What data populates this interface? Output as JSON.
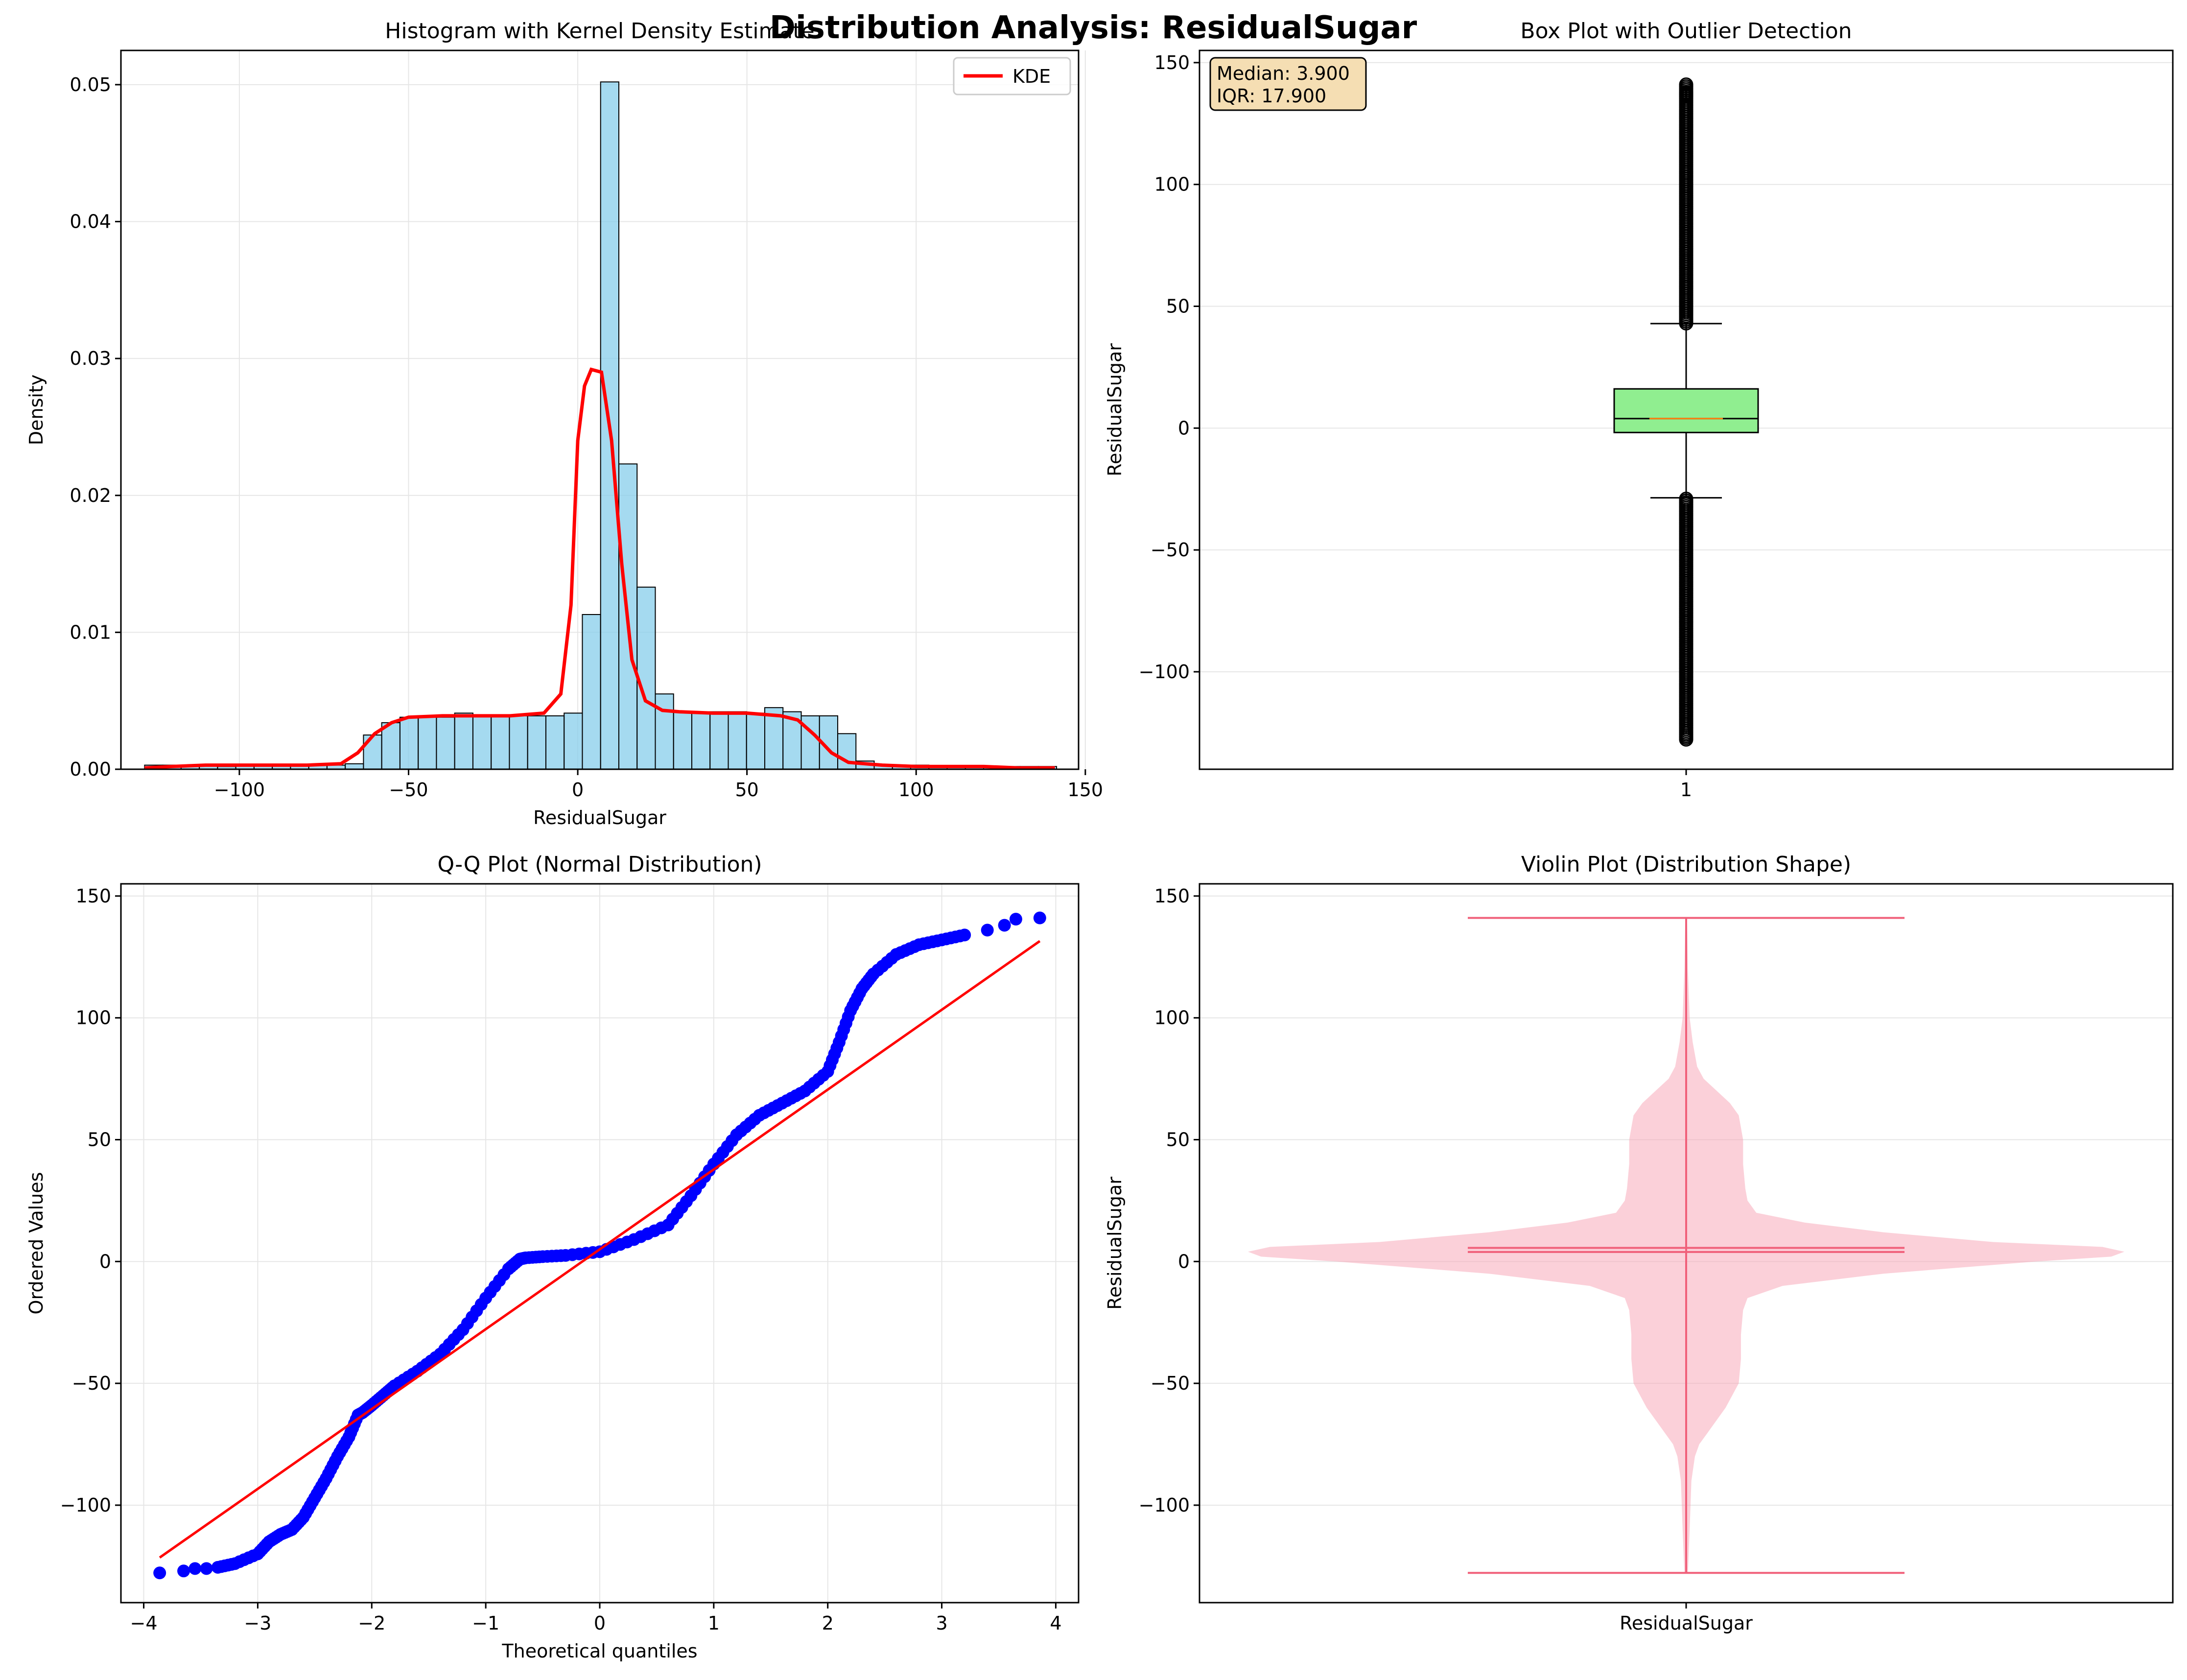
{
  "figure": {
    "title": "Distribution Analysis: ResidualSugar"
  },
  "colors": {
    "hist_fill": "#87ceeb",
    "kde": "#ff0000",
    "box_fill": "#90ee90",
    "median": "#ff7f0e",
    "qq_points": "#0000ff",
    "qq_line": "#ff0000",
    "violin": "#f7a1b3",
    "violin_lines": "#f0607a",
    "annotation_fill": "#f5deb3",
    "grid": "#e6e6e6"
  },
  "chart_data": [
    {
      "panel": "histogram",
      "type": "bar",
      "title": "Histogram with Kernel Density Estimate",
      "xlabel": "ResidualSugar",
      "ylabel": "Density",
      "xlim": [
        -135,
        148
      ],
      "ylim": [
        0,
        0.0525
      ],
      "xticks": [
        -100,
        -50,
        0,
        50,
        100,
        150
      ],
      "xtick_labels": [
        "−100",
        "−50",
        "0",
        "50",
        "100",
        "150"
      ],
      "yticks": [
        0.0,
        0.01,
        0.02,
        0.03,
        0.04,
        0.05
      ],
      "ytick_labels": [
        "0.00",
        "0.01",
        "0.02",
        "0.03",
        "0.04",
        "0.05"
      ],
      "grid": true,
      "legend": {
        "entries": [
          "KDE"
        ],
        "placement": "upper-right"
      },
      "bins": {
        "start": -128.0,
        "width": 5.39,
        "values": [
          0.0003,
          0.0003,
          0.0003,
          0.0003,
          0.0002,
          0.0003,
          0.0003,
          0.0003,
          0.0003,
          0.0003,
          0.0003,
          0.0004,
          0.0025,
          0.0034,
          0.0038,
          0.0038,
          0.0038,
          0.0041,
          0.0039,
          0.0039,
          0.0039,
          0.0039,
          0.0039,
          0.0041,
          0.0113,
          0.0502,
          0.0223,
          0.0133,
          0.0055,
          0.0042,
          0.0042,
          0.0042,
          0.0042,
          0.0041,
          0.0045,
          0.0042,
          0.0039,
          0.0039,
          0.0026,
          0.0006,
          0.0003,
          0.0003,
          0.0003,
          0.0002,
          0.0002,
          0.0002,
          0.0002,
          0.0002,
          0.0002,
          0.0002
        ]
      },
      "kde": {
        "name": "KDE",
        "x": [
          -128,
          -120,
          -110,
          -100,
          -90,
          -80,
          -70,
          -65,
          -60,
          -55,
          -50,
          -40,
          -30,
          -20,
          -10,
          -5,
          -2,
          0,
          2,
          4,
          7,
          10,
          13,
          16,
          20,
          25,
          30,
          40,
          50,
          60,
          65,
          70,
          75,
          80,
          90,
          100,
          110,
          120,
          130,
          141
        ],
        "y": [
          0.0001,
          0.0002,
          0.0003,
          0.0003,
          0.0003,
          0.0003,
          0.0004,
          0.0012,
          0.0026,
          0.0034,
          0.0038,
          0.0039,
          0.0039,
          0.0039,
          0.0041,
          0.0055,
          0.012,
          0.024,
          0.028,
          0.0292,
          0.029,
          0.024,
          0.015,
          0.008,
          0.005,
          0.0043,
          0.0042,
          0.0041,
          0.0041,
          0.0039,
          0.0036,
          0.0025,
          0.0012,
          0.0005,
          0.0003,
          0.0002,
          0.0002,
          0.0002,
          0.0001,
          0.0001
        ]
      }
    },
    {
      "panel": "boxplot",
      "type": "box",
      "title": "Box Plot with Outlier Detection",
      "ylabel": "ResidualSugar",
      "xticks": [
        1
      ],
      "xtick_labels": [
        "1"
      ],
      "ylim": [
        -140,
        155
      ],
      "yticks": [
        -100,
        -50,
        0,
        50,
        100,
        150
      ],
      "ytick_labels": [
        "−100",
        "−50",
        "0",
        "50",
        "100",
        "150"
      ],
      "grid": true,
      "annotation": {
        "line1": "Median: 3.900",
        "line2": "IQR: 17.900"
      },
      "stats": {
        "q1": -1.8,
        "median": 3.9,
        "q3": 16.1,
        "whisker_low": -28.6,
        "whisker_high": 42.9,
        "min": -127.8,
        "max": 141.0
      },
      "outliers_upper": [
        43,
        46,
        49,
        52,
        55,
        58,
        61,
        64,
        67,
        70,
        73,
        76,
        79,
        82,
        85,
        88,
        91,
        94,
        97,
        100,
        103,
        106,
        109,
        112,
        115,
        118,
        121,
        124,
        127,
        130,
        133,
        136,
        138,
        141
      ],
      "outliers_lower": [
        -29,
        -32,
        -35,
        -38,
        -41,
        -44,
        -47,
        -50,
        -53,
        -56,
        -59,
        -62,
        -65,
        -68,
        -71,
        -74,
        -77,
        -80,
        -83,
        -86,
        -89,
        -92,
        -95,
        -98,
        -101,
        -104,
        -107,
        -110,
        -113,
        -116,
        -119,
        -122,
        -125,
        -127.8
      ]
    },
    {
      "panel": "qq",
      "type": "scatter",
      "title": "Q-Q Plot (Normal Distribution)",
      "xlabel": "Theoretical quantiles",
      "ylabel": "Ordered Values",
      "xlim": [
        -4.2,
        4.2
      ],
      "ylim": [
        -140,
        155
      ],
      "xticks": [
        -4,
        -3,
        -2,
        -1,
        0,
        1,
        2,
        3,
        4
      ],
      "xtick_labels": [
        "−4",
        "−3",
        "−2",
        "−1",
        "0",
        "1",
        "2",
        "3",
        "4"
      ],
      "yticks": [
        -100,
        -50,
        0,
        50,
        100,
        150
      ],
      "ytick_labels": [
        "−100",
        "−50",
        "0",
        "50",
        "100",
        "150"
      ],
      "grid": true,
      "points": {
        "x": [
          -3.86,
          -3.65,
          -3.55,
          -3.45,
          -3.35,
          -3.2,
          -3.0,
          -2.9,
          -2.8,
          -2.7,
          -2.6,
          -2.5,
          -2.4,
          -2.3,
          -2.2,
          -2.12,
          -2.08,
          -2.0,
          -1.9,
          -1.8,
          -1.6,
          -1.4,
          -1.2,
          -1.0,
          -0.8,
          -0.7,
          -0.65,
          -0.5,
          -0.3,
          0.0,
          0.3,
          0.6,
          0.8,
          1.0,
          1.2,
          1.4,
          1.6,
          1.8,
          2.0,
          2.1,
          2.2,
          2.3,
          2.4,
          2.6,
          2.8,
          3.0,
          3.2,
          3.4,
          3.55,
          3.65,
          3.86
        ],
        "y": [
          -127.8,
          -127.0,
          -126.0,
          -126.0,
          -125.5,
          -124.0,
          -120.0,
          -115.0,
          -112.0,
          -110.0,
          -105.0,
          -97.0,
          -89.0,
          -80.0,
          -72.0,
          -63.0,
          -62.0,
          -59.0,
          -55.0,
          -51.0,
          -45.0,
          -38.0,
          -28.0,
          -15.0,
          -3.0,
          1.0,
          1.5,
          2.0,
          2.5,
          4.0,
          9.0,
          15.0,
          27.0,
          40.0,
          52.0,
          60.0,
          65.0,
          70.0,
          78.0,
          90.0,
          103.0,
          112.0,
          118.0,
          126.0,
          130.0,
          132.0,
          134.0,
          136.0,
          138.0,
          140.5,
          141.0
        ]
      },
      "fit_line": {
        "x": [
          -3.86,
          3.86
        ],
        "y": [
          -121.5,
          131.5
        ]
      }
    },
    {
      "panel": "violin",
      "type": "violin",
      "title": "Violin Plot (Distribution Shape)",
      "ylabel": "ResidualSugar",
      "xtick_labels": [
        "ResidualSugar"
      ],
      "ylim": [
        -140,
        155
      ],
      "yticks": [
        -100,
        -50,
        0,
        50,
        100,
        150
      ],
      "ytick_labels": [
        "−100",
        "−50",
        "0",
        "50",
        "100",
        "150"
      ],
      "grid": true,
      "max": 141.0,
      "min": -127.8,
      "median": 3.9,
      "mean": 5.6,
      "shape_y": [
        -127.8,
        -110,
        -90,
        -80,
        -75,
        -70,
        -60,
        -50,
        -40,
        -30,
        -20,
        -15,
        -10,
        -5,
        0,
        2,
        4,
        6,
        8,
        12,
        16,
        20,
        25,
        30,
        40,
        50,
        60,
        65,
        70,
        75,
        80,
        90,
        100,
        120,
        141
      ],
      "shape_halfwidth": [
        0.004,
        0.008,
        0.012,
        0.02,
        0.03,
        0.05,
        0.09,
        0.12,
        0.125,
        0.125,
        0.13,
        0.14,
        0.22,
        0.45,
        0.8,
        0.97,
        1.0,
        0.95,
        0.7,
        0.45,
        0.27,
        0.16,
        0.14,
        0.135,
        0.13,
        0.13,
        0.12,
        0.1,
        0.07,
        0.04,
        0.025,
        0.015,
        0.008,
        0.004,
        0.002
      ]
    }
  ]
}
